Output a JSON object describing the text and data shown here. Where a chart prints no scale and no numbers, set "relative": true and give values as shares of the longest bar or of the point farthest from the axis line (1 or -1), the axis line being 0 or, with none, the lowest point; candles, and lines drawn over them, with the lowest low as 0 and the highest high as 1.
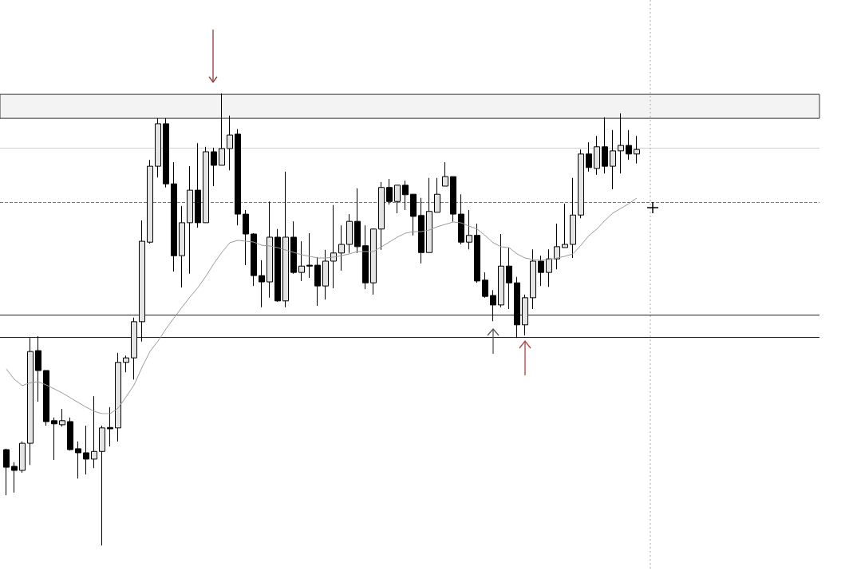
{
  "chart_data": [
    {
      "type": "candlestick",
      "relative": true,
      "color": "#000000",
      "categories": [
        null,
        null,
        null,
        null,
        null,
        null,
        null,
        null,
        null,
        null,
        null,
        null,
        null,
        null,
        null,
        null,
        null,
        null,
        null,
        null,
        null,
        null,
        null,
        null,
        null,
        null,
        null,
        null,
        null,
        null,
        null,
        null,
        null,
        null,
        null,
        null,
        null,
        null,
        null,
        null,
        null,
        null,
        null,
        null,
        null,
        null,
        null,
        null,
        null,
        null,
        null,
        null,
        null,
        null,
        null,
        null,
        null,
        null,
        null,
        null,
        null,
        null,
        null,
        null,
        null,
        null,
        null,
        null,
        null,
        null,
        null,
        null,
        null,
        null,
        null,
        null,
        null,
        null,
        null,
        null
      ],
      "ohlc": [
        [
          0.212,
          0.214,
          0.111,
          0.173
        ],
        [
          0.175,
          0.184,
          0.117,
          0.166
        ],
        [
          0.166,
          0.23,
          0.161,
          0.226
        ],
        [
          0.226,
          0.459,
          0.178,
          0.429
        ],
        [
          0.431,
          0.463,
          0.318,
          0.387
        ],
        [
          0.387,
          0.387,
          0.265,
          0.274
        ],
        [
          0.276,
          0.283,
          0.189,
          0.269
        ],
        [
          0.267,
          0.302,
          0.263,
          0.276
        ],
        [
          0.274,
          0.283,
          0.21,
          0.212
        ],
        [
          0.214,
          0.23,
          0.148,
          0.205
        ],
        [
          0.205,
          0.265,
          0.157,
          0.191
        ],
        [
          0.191,
          0.33,
          0.171,
          0.208
        ],
        [
          0.208,
          0.265,
          0,
          0.26
        ],
        [
          0.261,
          0.306,
          0.219,
          0.258
        ],
        [
          0.26,
          0.426,
          0.23,
          0.405
        ],
        [
          0.405,
          0.42,
          0.383,
          0.415
        ],
        [
          0.415,
          0.504,
          0.367,
          0.495
        ],
        [
          0.495,
          0.719,
          0.451,
          0.673
        ],
        [
          0.671,
          0.853,
          0.668,
          0.839
        ],
        [
          0.839,
          0.945,
          0.814,
          0.933
        ],
        [
          0.933,
          0.945,
          0.792,
          0.8
        ],
        [
          0.8,
          0.848,
          0.606,
          0.641
        ],
        [
          0.641,
          0.751,
          0.571,
          0.714
        ],
        [
          0.714,
          0.839,
          0.601,
          0.786
        ],
        [
          0.786,
          0.89,
          0.703,
          0.714
        ],
        [
          0.714,
          0.882,
          0.714,
          0.871
        ],
        [
          0.871,
          0.88,
          0.795,
          0.841
        ],
        [
          0.841,
          1,
          0.841,
          0.878
        ],
        [
          0.878,
          0.951,
          0.83,
          0.908
        ],
        [
          0.91,
          0.921,
          0.708,
          0.733
        ],
        [
          0.733,
          0.742,
          0.62,
          0.689
        ],
        [
          0.689,
          0.691,
          0.574,
          0.597
        ],
        [
          0.597,
          0.631,
          0.527,
          0.583
        ],
        [
          0.583,
          0.761,
          0.548,
          0.682
        ],
        [
          0.682,
          0.7,
          0.539,
          0.541
        ],
        [
          0.541,
          0.827,
          0.527,
          0.682
        ],
        [
          0.682,
          0.717,
          0.601,
          0.604
        ],
        [
          0.604,
          0.673,
          0.585,
          0.618
        ],
        [
          0.62,
          0.691,
          0.592,
          0.618
        ],
        [
          0.62,
          0.638,
          0.53,
          0.574
        ],
        [
          0.574,
          0.654,
          0.544,
          0.629
        ],
        [
          0.629,
          0.753,
          0.569,
          0.647
        ],
        [
          0.647,
          0.708,
          0.608,
          0.666
        ],
        [
          0.666,
          0.733,
          0.647,
          0.717
        ],
        [
          0.717,
          0.79,
          0.647,
          0.661
        ],
        [
          0.663,
          0.708,
          0.567,
          0.581
        ],
        [
          0.581,
          0.701,
          0.555,
          0.7
        ],
        [
          0.7,
          0.804,
          0.654,
          0.792
        ],
        [
          0.792,
          0.811,
          0.754,
          0.761
        ],
        [
          0.761,
          0.797,
          0.735,
          0.797
        ],
        [
          0.797,
          0.807,
          0.742,
          0.776
        ],
        [
          0.777,
          0.777,
          0.686,
          0.728
        ],
        [
          0.73,
          0.769,
          0.624,
          0.648
        ],
        [
          0.648,
          0.813,
          0.648,
          0.739
        ],
        [
          0.737,
          0.813,
          0.737,
          0.777
        ],
        [
          0.795,
          0.848,
          0.795,
          0.816
        ],
        [
          0.816,
          0.816,
          0.716,
          0.733
        ],
        [
          0.733,
          0.777,
          0.666,
          0.671
        ],
        [
          0.671,
          0.742,
          0.655,
          0.686
        ],
        [
          0.686,
          0.712,
          0.581,
          0.585
        ],
        [
          0.587,
          0.604,
          0.548,
          0.551
        ],
        [
          0.553,
          0.565,
          0.496,
          0.532
        ],
        [
          0.532,
          0.689,
          0.527,
          0.618
        ],
        [
          0.618,
          0.659,
          0.523,
          0.581
        ],
        [
          0.581,
          0.594,
          0.459,
          0.488
        ],
        [
          0.488,
          0.555,
          0.465,
          0.548
        ],
        [
          0.548,
          0.655,
          0.523,
          0.629
        ],
        [
          0.629,
          0.641,
          0.574,
          0.604
        ],
        [
          0.604,
          0.655,
          0.572,
          0.634
        ],
        [
          0.634,
          0.712,
          0.611,
          0.661
        ],
        [
          0.659,
          0.756,
          0.659,
          0.666
        ],
        [
          0.666,
          0.813,
          0.636,
          0.731
        ],
        [
          0.731,
          0.876,
          0.724,
          0.866
        ],
        [
          0.866,
          0.892,
          0.827,
          0.836
        ],
        [
          0.834,
          0.906,
          0.82,
          0.882
        ],
        [
          0.882,
          0.947,
          0.823,
          0.839
        ],
        [
          0.839,
          0.919,
          0.788,
          0.873
        ],
        [
          0.873,
          0.956,
          0.823,
          0.885
        ],
        [
          0.885,
          0.919,
          0.853,
          0.866
        ],
        [
          0.866,
          0.906,
          0.845,
          0.876
        ]
      ],
      "ref_lines": [
        {
          "axis": "y",
          "value": 0.459,
          "color": "#222222"
        },
        {
          "axis": "y",
          "value": 0.511,
          "color": "#222222"
        },
        {
          "axis": "y",
          "value": 0.876,
          "color": "#d0d0d0"
        },
        {
          "axis": "y",
          "value": 0.756,
          "color": "#777777",
          "line_style": "dashed"
        }
      ],
      "bands": [
        {
          "axis": "y",
          "from": 0.945,
          "to": 0.998,
          "color": "#333333"
        }
      ]
    },
    {
      "type": "line",
      "relative": true,
      "marker": "none",
      "categories": [
        null,
        null,
        null,
        null,
        null,
        null,
        null,
        null,
        null,
        null,
        null,
        null,
        null,
        null,
        null,
        null,
        null,
        null,
        null,
        null,
        null,
        null,
        null,
        null,
        null,
        null,
        null,
        null,
        null,
        null,
        null,
        null,
        null,
        null,
        null,
        null,
        null,
        null,
        null,
        null,
        null,
        null,
        null,
        null,
        null,
        null,
        null,
        null,
        null,
        null,
        null,
        null,
        null,
        null,
        null,
        null,
        null,
        null,
        null,
        null,
        null,
        null,
        null,
        null,
        null,
        null,
        null,
        null,
        null,
        null,
        null,
        null,
        null,
        null,
        null,
        null,
        null,
        null,
        null,
        null
      ],
      "series": [
        {
          "color": "#9a9a9a",
          "values": [
            0.207,
            0.159,
            0.13,
            0.144,
            0.148,
            0.133,
            0.115,
            0.096,
            0.074,
            0.052,
            0.03,
            0.011,
            0,
            0,
            0.026,
            0.078,
            0.133,
            0.215,
            0.289,
            0.337,
            0.393,
            0.444,
            0.493,
            0.541,
            0.585,
            0.637,
            0.696,
            0.748,
            0.793,
            0.804,
            0.8,
            0.796,
            0.781,
            0.778,
            0.77,
            0.759,
            0.748,
            0.737,
            0.73,
            0.722,
            0.722,
            0.726,
            0.733,
            0.741,
            0.752,
            0.752,
            0.752,
            0.774,
            0.796,
            0.819,
            0.837,
            0.844,
            0.844,
            0.852,
            0.867,
            0.878,
            0.889,
            0.885,
            0.87,
            0.856,
            0.826,
            0.793,
            0.774,
            0.77,
            0.741,
            0.722,
            0.715,
            0.711,
            0.715,
            0.722,
            0.73,
            0.741,
            0.781,
            0.826,
            0.856,
            0.896,
            0.93,
            0.952,
            0.974,
            1
          ]
        }
      ]
    }
  ]
}
